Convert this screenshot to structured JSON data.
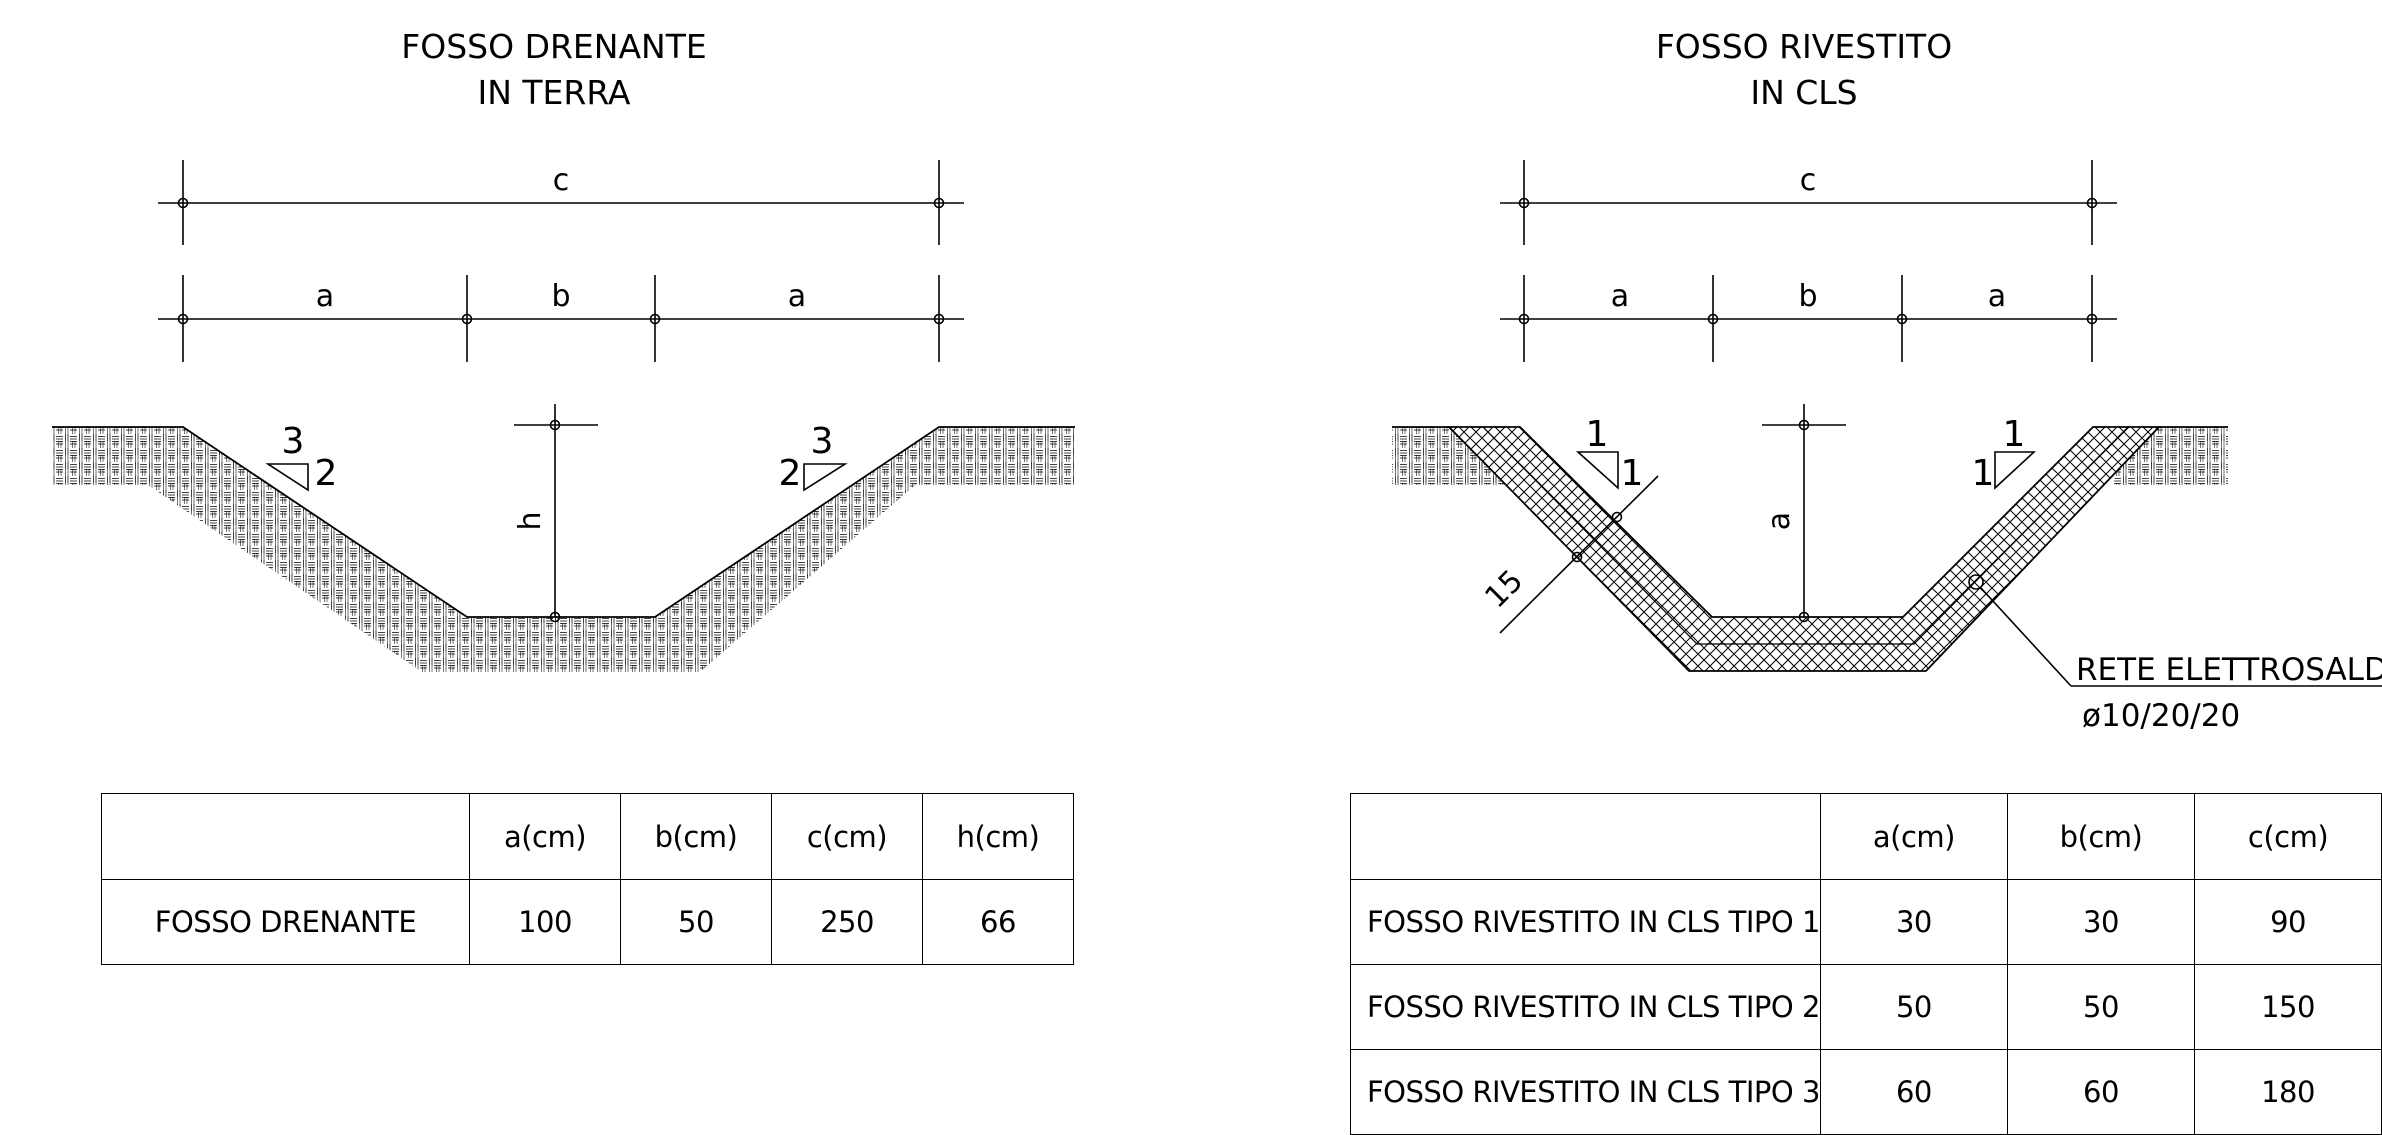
{
  "left_drawing": {
    "title_line1": "FOSSO DRENANTE",
    "title_line2": "IN TERRA",
    "dim_c": "c",
    "dim_a_left": "a",
    "dim_b": "b",
    "dim_a_right": "a",
    "dim_h": "h",
    "slope_left_top": "3",
    "slope_left_side": "2",
    "slope_right_top": "3",
    "slope_right_side": "2"
  },
  "right_drawing": {
    "title_line1": "FOSSO RIVESTITO",
    "title_line2": "IN CLS",
    "dim_c": "c",
    "dim_a_left": "a",
    "dim_b": "b",
    "dim_a_right": "a",
    "dim_depth": "a",
    "slope_left_top": "1",
    "slope_left_side": "1",
    "slope_right_top": "1",
    "slope_right_side": "1",
    "thickness_label": "15",
    "mesh_label_line1": "RETE ELETTROSALDATA",
    "mesh_label_line2": "ø10/20/20"
  },
  "left_table": {
    "headers": [
      "",
      "a(cm)",
      "b(cm)",
      "c(cm)",
      "h(cm)"
    ],
    "rows": [
      [
        "FOSSO DRENANTE",
        "100",
        "50",
        "250",
        "66"
      ]
    ]
  },
  "right_table": {
    "headers": [
      "",
      "a(cm)",
      "b(cm)",
      "c(cm)"
    ],
    "rows": [
      [
        "FOSSO RIVESTITO IN CLS TIPO 1",
        "30",
        "30",
        "90"
      ],
      [
        "FOSSO RIVESTITO IN CLS TIPO 2",
        "50",
        "50",
        "150"
      ],
      [
        "FOSSO RIVESTITO IN CLS TIPO 3",
        "60",
        "60",
        "180"
      ]
    ]
  }
}
